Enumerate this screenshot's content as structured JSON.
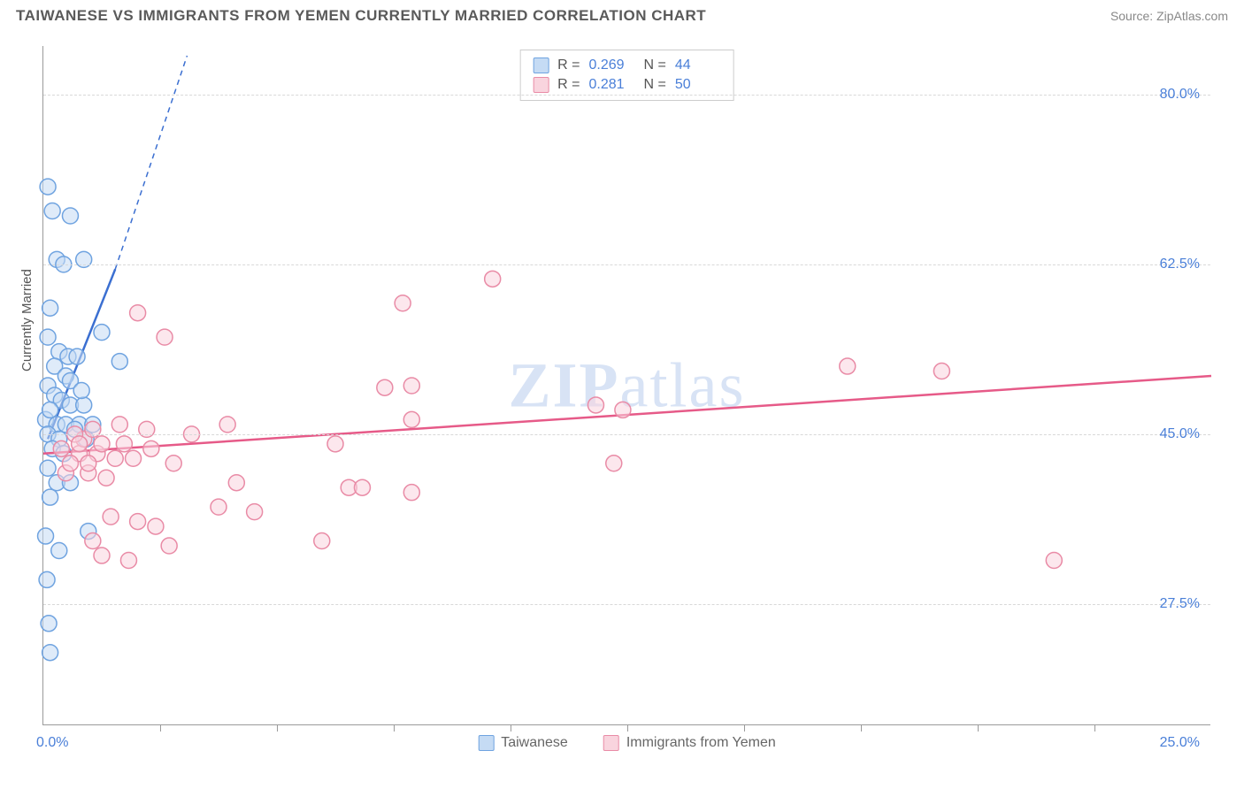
{
  "header": {
    "title": "TAIWANESE VS IMMIGRANTS FROM YEMEN CURRENTLY MARRIED CORRELATION CHART",
    "source": "Source: ZipAtlas.com"
  },
  "chart": {
    "type": "scatter",
    "ylabel": "Currently Married",
    "watermark": "ZIPatlas",
    "background_color": "#ffffff",
    "grid_color": "#d8d8d8",
    "axis_color": "#9a9a9a",
    "tick_label_color": "#4a7fd8",
    "ylim": [
      15,
      85
    ],
    "xlim": [
      0,
      26
    ],
    "yticks": [
      {
        "value": 27.5,
        "label": "27.5%"
      },
      {
        "value": 45.0,
        "label": "45.0%"
      },
      {
        "value": 62.5,
        "label": "62.5%"
      },
      {
        "value": 80.0,
        "label": "80.0%"
      }
    ],
    "xticks": [
      2.6,
      5.2,
      7.8,
      10.4,
      13.0,
      15.6,
      18.2,
      20.8,
      23.4
    ],
    "x_origin_label": "0.0%",
    "x_end_label": "25.0%",
    "marker_radius": 9,
    "marker_stroke_width": 1.5,
    "line_width": 2.5,
    "series": [
      {
        "id": "taiwanese",
        "label": "Taiwanese",
        "fill": "#c5dbf4",
        "stroke": "#6fa3e0",
        "line_color": "#3b6fd1",
        "r_value": "0.269",
        "n_value": "44",
        "trend": {
          "x1": 0.1,
          "y1": 44.5,
          "x2": 1.6,
          "y2": 62.0,
          "dash_x2": 3.2,
          "dash_y2": 84.0
        },
        "points": [
          [
            0.1,
            70.5
          ],
          [
            0.2,
            68.0
          ],
          [
            0.6,
            67.5
          ],
          [
            0.3,
            63.0
          ],
          [
            0.45,
            62.5
          ],
          [
            0.9,
            63.0
          ],
          [
            0.15,
            58.0
          ],
          [
            0.1,
            55.0
          ],
          [
            1.3,
            55.5
          ],
          [
            0.35,
            53.5
          ],
          [
            0.55,
            53.0
          ],
          [
            0.75,
            53.0
          ],
          [
            1.7,
            52.5
          ],
          [
            0.1,
            50.0
          ],
          [
            0.25,
            49.0
          ],
          [
            0.4,
            48.5
          ],
          [
            0.6,
            48.0
          ],
          [
            0.9,
            48.0
          ],
          [
            0.05,
            46.5
          ],
          [
            0.3,
            46.0
          ],
          [
            0.5,
            46.0
          ],
          [
            0.8,
            46.0
          ],
          [
            1.1,
            46.0
          ],
          [
            0.1,
            45.0
          ],
          [
            0.35,
            44.5
          ],
          [
            0.2,
            43.5
          ],
          [
            0.45,
            43.0
          ],
          [
            0.1,
            41.5
          ],
          [
            0.3,
            40.0
          ],
          [
            0.6,
            40.0
          ],
          [
            0.15,
            38.5
          ],
          [
            1.0,
            35.0
          ],
          [
            0.05,
            34.5
          ],
          [
            0.35,
            33.0
          ],
          [
            0.08,
            30.0
          ],
          [
            0.12,
            25.5
          ],
          [
            0.15,
            22.5
          ],
          [
            0.7,
            45.5
          ],
          [
            0.95,
            44.5
          ],
          [
            0.25,
            52.0
          ],
          [
            0.5,
            51.0
          ],
          [
            0.15,
            47.5
          ],
          [
            0.6,
            50.5
          ],
          [
            0.85,
            49.5
          ]
        ]
      },
      {
        "id": "yemen",
        "label": "Immigrants from Yemen",
        "fill": "#f9d4de",
        "stroke": "#e98ba6",
        "line_color": "#e65a88",
        "r_value": "0.281",
        "n_value": "50",
        "trend": {
          "x1": 0.0,
          "y1": 43.0,
          "x2": 26.0,
          "y2": 51.0
        },
        "points": [
          [
            10.0,
            61.0
          ],
          [
            8.0,
            58.5
          ],
          [
            2.1,
            57.5
          ],
          [
            2.7,
            55.0
          ],
          [
            17.9,
            52.0
          ],
          [
            20.0,
            51.5
          ],
          [
            8.2,
            50.0
          ],
          [
            7.6,
            49.8
          ],
          [
            12.3,
            48.0
          ],
          [
            12.9,
            47.5
          ],
          [
            8.2,
            46.5
          ],
          [
            4.1,
            46.0
          ],
          [
            1.7,
            46.0
          ],
          [
            2.3,
            45.5
          ],
          [
            3.3,
            45.0
          ],
          [
            6.5,
            44.0
          ],
          [
            0.8,
            43.0
          ],
          [
            1.2,
            43.0
          ],
          [
            1.6,
            42.5
          ],
          [
            2.0,
            42.5
          ],
          [
            2.9,
            42.0
          ],
          [
            12.7,
            42.0
          ],
          [
            0.5,
            41.0
          ],
          [
            1.0,
            41.0
          ],
          [
            1.4,
            40.5
          ],
          [
            4.3,
            40.0
          ],
          [
            6.8,
            39.5
          ],
          [
            7.1,
            39.5
          ],
          [
            8.2,
            39.0
          ],
          [
            3.9,
            37.5
          ],
          [
            4.7,
            37.0
          ],
          [
            1.5,
            36.5
          ],
          [
            2.1,
            36.0
          ],
          [
            2.5,
            35.5
          ],
          [
            1.1,
            34.0
          ],
          [
            6.2,
            34.0
          ],
          [
            2.8,
            33.5
          ],
          [
            1.3,
            32.5
          ],
          [
            1.9,
            32.0
          ],
          [
            22.5,
            32.0
          ],
          [
            0.9,
            44.5
          ],
          [
            1.3,
            44.0
          ],
          [
            1.8,
            44.0
          ],
          [
            2.4,
            43.5
          ],
          [
            0.7,
            45.0
          ],
          [
            1.1,
            45.5
          ],
          [
            0.6,
            42.0
          ],
          [
            1.0,
            42.0
          ],
          [
            0.4,
            43.5
          ],
          [
            0.8,
            44.0
          ]
        ]
      }
    ]
  },
  "legend_top": {
    "r_label": "R =",
    "n_label": "N ="
  },
  "legend_bottom_labels": {
    "taiwanese": "Taiwanese",
    "yemen": "Immigrants from Yemen"
  }
}
